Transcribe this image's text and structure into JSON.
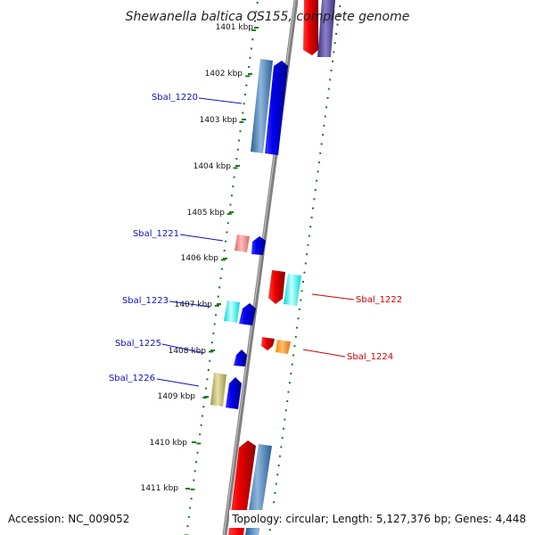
{
  "title": "Shewanella baltica OS155, complete genome",
  "footer": {
    "accession": "Accession: NC_009052",
    "topology": "Topology: circular; Length: 5,127,376 bp; Genes: 4,448"
  },
  "colors": {
    "forward_label": "#1010c0",
    "reverse_label": "#d00000",
    "backbone": "#808080",
    "tick": "#1a7a1a"
  },
  "kbp_ticks": [
    "1401 kbp",
    "1402 kbp",
    "1403 kbp",
    "1404 kbp",
    "1405 kbp",
    "1406 kbp",
    "1407 kbp",
    "1408 kbp",
    "1409 kbp",
    "1410 kbp",
    "1411 kbp"
  ],
  "gene_labels": [
    {
      "name": "Sbal_1220",
      "strand": "forward"
    },
    {
      "name": "Sbal_1221",
      "strand": "forward"
    },
    {
      "name": "Sbal_1223",
      "strand": "forward"
    },
    {
      "name": "Sbal_1225",
      "strand": "forward"
    },
    {
      "name": "Sbal_1226",
      "strand": "forward"
    },
    {
      "name": "Sbal_1222",
      "strand": "reverse"
    },
    {
      "name": "Sbal_1224",
      "strand": "reverse"
    }
  ]
}
